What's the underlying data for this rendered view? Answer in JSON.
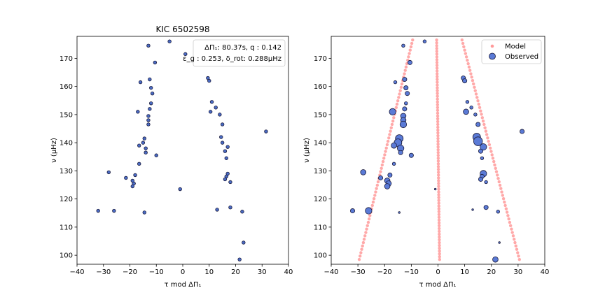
{
  "chart_data": [
    {
      "type": "scatter",
      "title": "KIC 6502598",
      "xlabel": "τ mod ΔΠ₁",
      "ylabel": "ν (μHz)",
      "xlim": [
        -40,
        40
      ],
      "ylim": [
        96.8,
        177.8
      ],
      "xticks": [
        -40,
        -30,
        -20,
        -10,
        0,
        10,
        20,
        30,
        40
      ],
      "yticks": [
        100,
        110,
        120,
        130,
        140,
        150,
        160,
        170
      ],
      "grid": false,
      "annotation": {
        "line1": "ΔΠ₁: 80.37s, q : 0.142",
        "line2": "ε_g : 0.253, δ_rot: 0.288μHz",
        "position": "top-right"
      },
      "series": [
        {
          "color": "#4a6bc4",
          "points": [
            [
              -5,
              176
            ],
            [
              1,
              171.5
            ],
            [
              -13,
              174.5
            ],
            [
              -10.5,
              168.5
            ],
            [
              -12.5,
              162.5
            ],
            [
              -16,
              161.5
            ],
            [
              -12,
              159.5
            ],
            [
              -11.5,
              157.5
            ],
            [
              9.5,
              163
            ],
            [
              10,
              162
            ],
            [
              11,
              154.5
            ],
            [
              12.5,
              152.5
            ],
            [
              10.5,
              151
            ],
            [
              -17,
              151
            ],
            [
              -12.5,
              152
            ],
            [
              -12,
              154
            ],
            [
              -13,
              149.5
            ],
            [
              -13,
              148
            ],
            [
              -13,
              146.5
            ],
            [
              14,
              150
            ],
            [
              15,
              146.5
            ],
            [
              14.5,
              142
            ],
            [
              15,
              140
            ],
            [
              17,
              138.5
            ],
            [
              16,
              137
            ],
            [
              16.5,
              134.5
            ],
            [
              -14.5,
              141.5
            ],
            [
              -15,
              140
            ],
            [
              -14,
              138
            ],
            [
              -16.5,
              139
            ],
            [
              -14,
              136.5
            ],
            [
              -10,
              135.5
            ],
            [
              -16.5,
              132.5
            ],
            [
              -28,
              129.5
            ],
            [
              -18,
              128.5
            ],
            [
              -21.5,
              127.5
            ],
            [
              -19,
              126.5
            ],
            [
              -18.5,
              125.5
            ],
            [
              -19,
              124.5
            ],
            [
              17,
              129
            ],
            [
              16.5,
              128
            ],
            [
              16,
              127
            ],
            [
              18,
              126
            ],
            [
              31.5,
              144
            ],
            [
              -1,
              123.5
            ],
            [
              -32,
              115.8
            ],
            [
              -26,
              115.8
            ],
            [
              -14.5,
              115.2
            ],
            [
              13,
              116.2
            ],
            [
              18,
              117
            ],
            [
              22.5,
              115.5
            ],
            [
              23,
              104.5
            ],
            [
              21.5,
              98.5
            ]
          ]
        }
      ]
    },
    {
      "type": "scatter",
      "title": "",
      "xlabel": "τ mod ΔΠ₁",
      "ylabel": "ν (μHz)",
      "xlim": [
        -40,
        40
      ],
      "ylim": [
        96.8,
        177.8
      ],
      "xticks": [
        -40,
        -30,
        -20,
        -10,
        0,
        10,
        20,
        30,
        40
      ],
      "yticks": [
        100,
        110,
        120,
        130,
        140,
        150,
        160,
        170
      ],
      "grid": false,
      "legend": {
        "position": "top-right",
        "entries": [
          "Model",
          "Observed"
        ]
      },
      "series": [
        {
          "name": "Model",
          "color": "#ff9a9a",
          "branches": [
            {
              "x0": -29.5,
              "x1": -9.5,
              "y0": 98.5,
              "y1": 176.5,
              "step": 1.2
            },
            {
              "x0": 30.5,
              "x1": 9,
              "y0": 98.5,
              "y1": 176.5,
              "step": 1.2
            },
            {
              "x0": 0.6,
              "x1": -0.5,
              "y0": 98.5,
              "y1": 176.5,
              "step": 1.0
            }
          ]
        },
        {
          "name": "Observed",
          "color": "#5a7ad6",
          "points": [
            [
              -5,
              176,
              1
            ],
            [
              -13,
              174.5,
              1
            ],
            [
              -10.5,
              168.5,
              2
            ],
            [
              -12.5,
              162.5,
              2
            ],
            [
              -16,
              161.5,
              1
            ],
            [
              -12,
              159.5,
              2
            ],
            [
              -11.5,
              157.5,
              2
            ],
            [
              9.5,
              163,
              2
            ],
            [
              10,
              162,
              2
            ],
            [
              11,
              154.5,
              1
            ],
            [
              12.5,
              152.5,
              1
            ],
            [
              10.5,
              151,
              3
            ],
            [
              -17,
              151,
              4
            ],
            [
              -12.5,
              152,
              2
            ],
            [
              -12,
              154,
              1
            ],
            [
              -13,
              149.5,
              3
            ],
            [
              -13,
              148,
              3
            ],
            [
              -13,
              146.5,
              4
            ],
            [
              14,
              150,
              1
            ],
            [
              15,
              146.5,
              2
            ],
            [
              14.5,
              142,
              5
            ],
            [
              15,
              140.5,
              6
            ],
            [
              17,
              138.5,
              4
            ],
            [
              16,
              137,
              2
            ],
            [
              16.5,
              134.5,
              1
            ],
            [
              -14.5,
              141.5,
              5
            ],
            [
              -15,
              140,
              5
            ],
            [
              -14,
              138,
              4
            ],
            [
              -16.5,
              139,
              3
            ],
            [
              -14,
              136.5,
              2
            ],
            [
              -10,
              135.5,
              2
            ],
            [
              -16.5,
              132.5,
              1
            ],
            [
              -28,
              129.5,
              3
            ],
            [
              -18,
              128.5,
              2
            ],
            [
              -21.5,
              127.5,
              2
            ],
            [
              -19,
              126.5,
              3
            ],
            [
              -18.5,
              125.5,
              3
            ],
            [
              -19,
              124.5,
              3
            ],
            [
              17,
              129,
              4
            ],
            [
              16.5,
              128,
              2
            ],
            [
              16,
              127,
              2
            ],
            [
              18,
              126,
              1
            ],
            [
              31.5,
              144,
              2
            ],
            [
              -1,
              123.5,
              0.5
            ],
            [
              -32,
              115.8,
              2
            ],
            [
              -26,
              115.8,
              4
            ],
            [
              -14.5,
              115.2,
              0.5
            ],
            [
              13,
              116.2,
              0.5
            ],
            [
              18,
              117,
              2
            ],
            [
              22.5,
              115.5,
              1
            ],
            [
              23,
              104.5,
              0.5
            ],
            [
              21.5,
              98.5,
              3
            ]
          ]
        }
      ]
    }
  ]
}
